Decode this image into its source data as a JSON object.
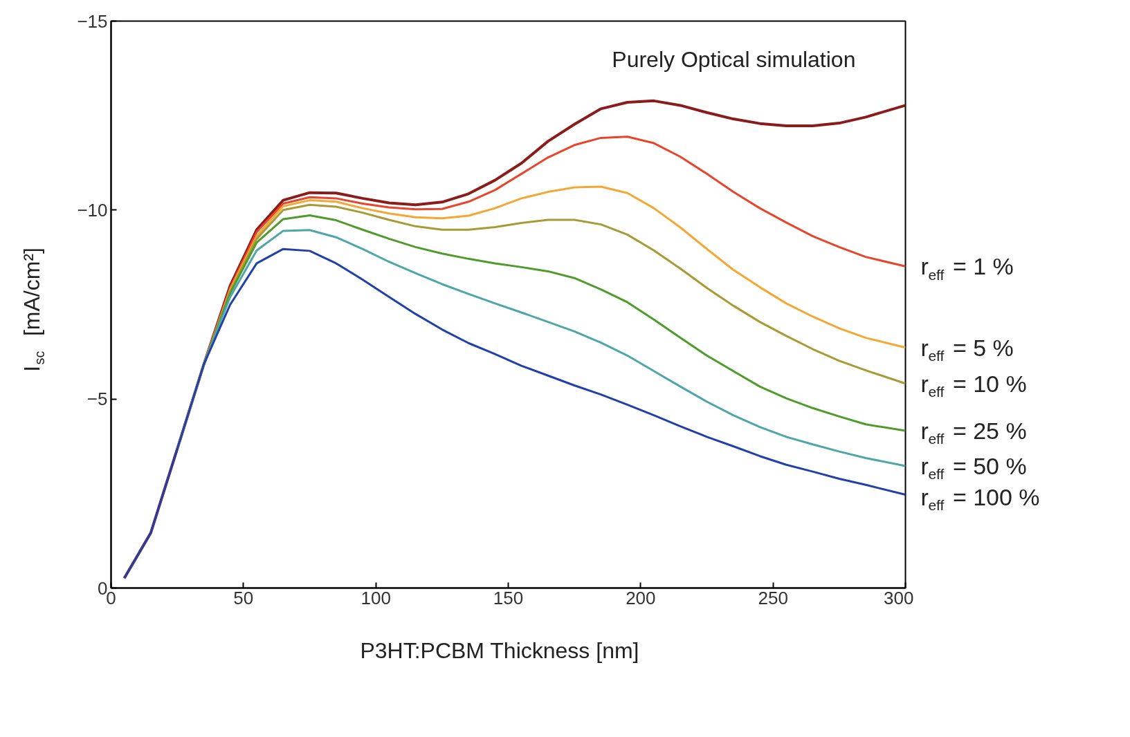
{
  "chart_data": {
    "type": "line",
    "xlabel": "P3HT:PCBM Thickness [nm]",
    "ylabel": "I$_{sc}$  [mA/cm²]",
    "annotations": [
      "Purely Optical simulation"
    ],
    "x": [
      5,
      15,
      25,
      35,
      45,
      55,
      65,
      75,
      85,
      95,
      105,
      115,
      125,
      135,
      145,
      155,
      165,
      175,
      185,
      195,
      205,
      215,
      225,
      235,
      245,
      255,
      265,
      275,
      285,
      300
    ],
    "series": [
      {
        "color": "#8b1c1c",
        "values": [
          -0.26,
          -1.46,
          -3.68,
          -5.91,
          -8.0,
          -9.48,
          -10.26,
          -10.46,
          -10.45,
          -10.31,
          -10.19,
          -10.14,
          -10.21,
          -10.43,
          -10.79,
          -11.24,
          -11.82,
          -12.27,
          -12.68,
          -12.85,
          -12.89,
          -12.77,
          -12.58,
          -12.41,
          -12.29,
          -12.23,
          -12.23,
          -12.3,
          -12.46,
          -12.77
        ]
      },
      {
        "name": "r$_{eff}$ =  1 %",
        "color": "#e8452c",
        "values": [
          null,
          null,
          -3.68,
          -5.91,
          -7.95,
          -9.42,
          -10.17,
          -10.34,
          -10.31,
          -10.17,
          -10.07,
          -10.02,
          -10.03,
          -10.22,
          -10.53,
          -10.96,
          -11.39,
          -11.72,
          -11.91,
          -11.94,
          -11.77,
          -11.41,
          -10.96,
          -10.48,
          -10.05,
          -9.67,
          -9.31,
          -9.02,
          -8.76,
          -8.51
        ]
      },
      {
        "name": "r$_{eff}$ =  5 %",
        "color": "#f5a733",
        "values": [
          null,
          null,
          -3.68,
          -5.91,
          -7.9,
          -9.31,
          -10.1,
          -10.26,
          -10.22,
          -10.05,
          -9.91,
          -9.81,
          -9.78,
          -9.85,
          -10.05,
          -10.31,
          -10.48,
          -10.6,
          -10.62,
          -10.45,
          -10.05,
          -9.54,
          -8.97,
          -8.42,
          -7.96,
          -7.53,
          -7.18,
          -6.87,
          -6.62,
          -6.36
        ]
      },
      {
        "name": "r$_{eff}$ = 10 %",
        "color": "#a89b35",
        "values": [
          null,
          null,
          -3.68,
          -5.91,
          -7.85,
          -9.24,
          -10.0,
          -10.14,
          -10.09,
          -9.93,
          -9.74,
          -9.57,
          -9.48,
          -9.48,
          -9.55,
          -9.66,
          -9.74,
          -9.74,
          -9.62,
          -9.35,
          -8.93,
          -8.45,
          -7.94,
          -7.47,
          -7.04,
          -6.67,
          -6.32,
          -6.01,
          -5.76,
          -5.41
        ]
      },
      {
        "name": "r$_{eff}$ = 25 %",
        "color": "#4f9b2c",
        "values": [
          null,
          null,
          -3.68,
          -5.91,
          -7.8,
          -9.14,
          -9.76,
          -9.86,
          -9.73,
          -9.48,
          -9.24,
          -9.02,
          -8.85,
          -8.71,
          -8.59,
          -8.49,
          -8.38,
          -8.2,
          -7.9,
          -7.56,
          -7.1,
          -6.62,
          -6.15,
          -5.74,
          -5.33,
          -5.02,
          -4.76,
          -4.54,
          -4.33,
          -4.16
        ]
      },
      {
        "name": "r$_{eff}$ = 50 %",
        "color": "#4ea6aa",
        "values": [
          null,
          null,
          -3.68,
          -5.91,
          -7.7,
          -8.93,
          -9.45,
          -9.47,
          -9.28,
          -8.97,
          -8.63,
          -8.33,
          -8.04,
          -7.78,
          -7.53,
          -7.29,
          -7.04,
          -6.79,
          -6.49,
          -6.15,
          -5.74,
          -5.33,
          -4.93,
          -4.57,
          -4.26,
          -4.0,
          -3.8,
          -3.61,
          -3.44,
          -3.23
        ]
      },
      {
        "name": "r$_{eff}$ = 100 %",
        "color": "#2140a8",
        "values": [
          -0.26,
          -1.46,
          -3.68,
          -5.91,
          -7.5,
          -8.59,
          -8.97,
          -8.92,
          -8.59,
          -8.16,
          -7.7,
          -7.25,
          -6.84,
          -6.48,
          -6.19,
          -5.88,
          -5.62,
          -5.36,
          -5.12,
          -4.85,
          -4.57,
          -4.28,
          -4.0,
          -3.75,
          -3.49,
          -3.26,
          -3.08,
          -2.89,
          -2.73,
          -2.47
        ]
      }
    ],
    "xlim": [
      0,
      300
    ],
    "xticks": [
      0,
      50,
      100,
      150,
      200,
      250,
      300
    ],
    "ylim": [
      0,
      -15
    ],
    "yticks": [
      0,
      -5,
      -10,
      -15
    ],
    "grid": false,
    "line_style": "solid"
  }
}
